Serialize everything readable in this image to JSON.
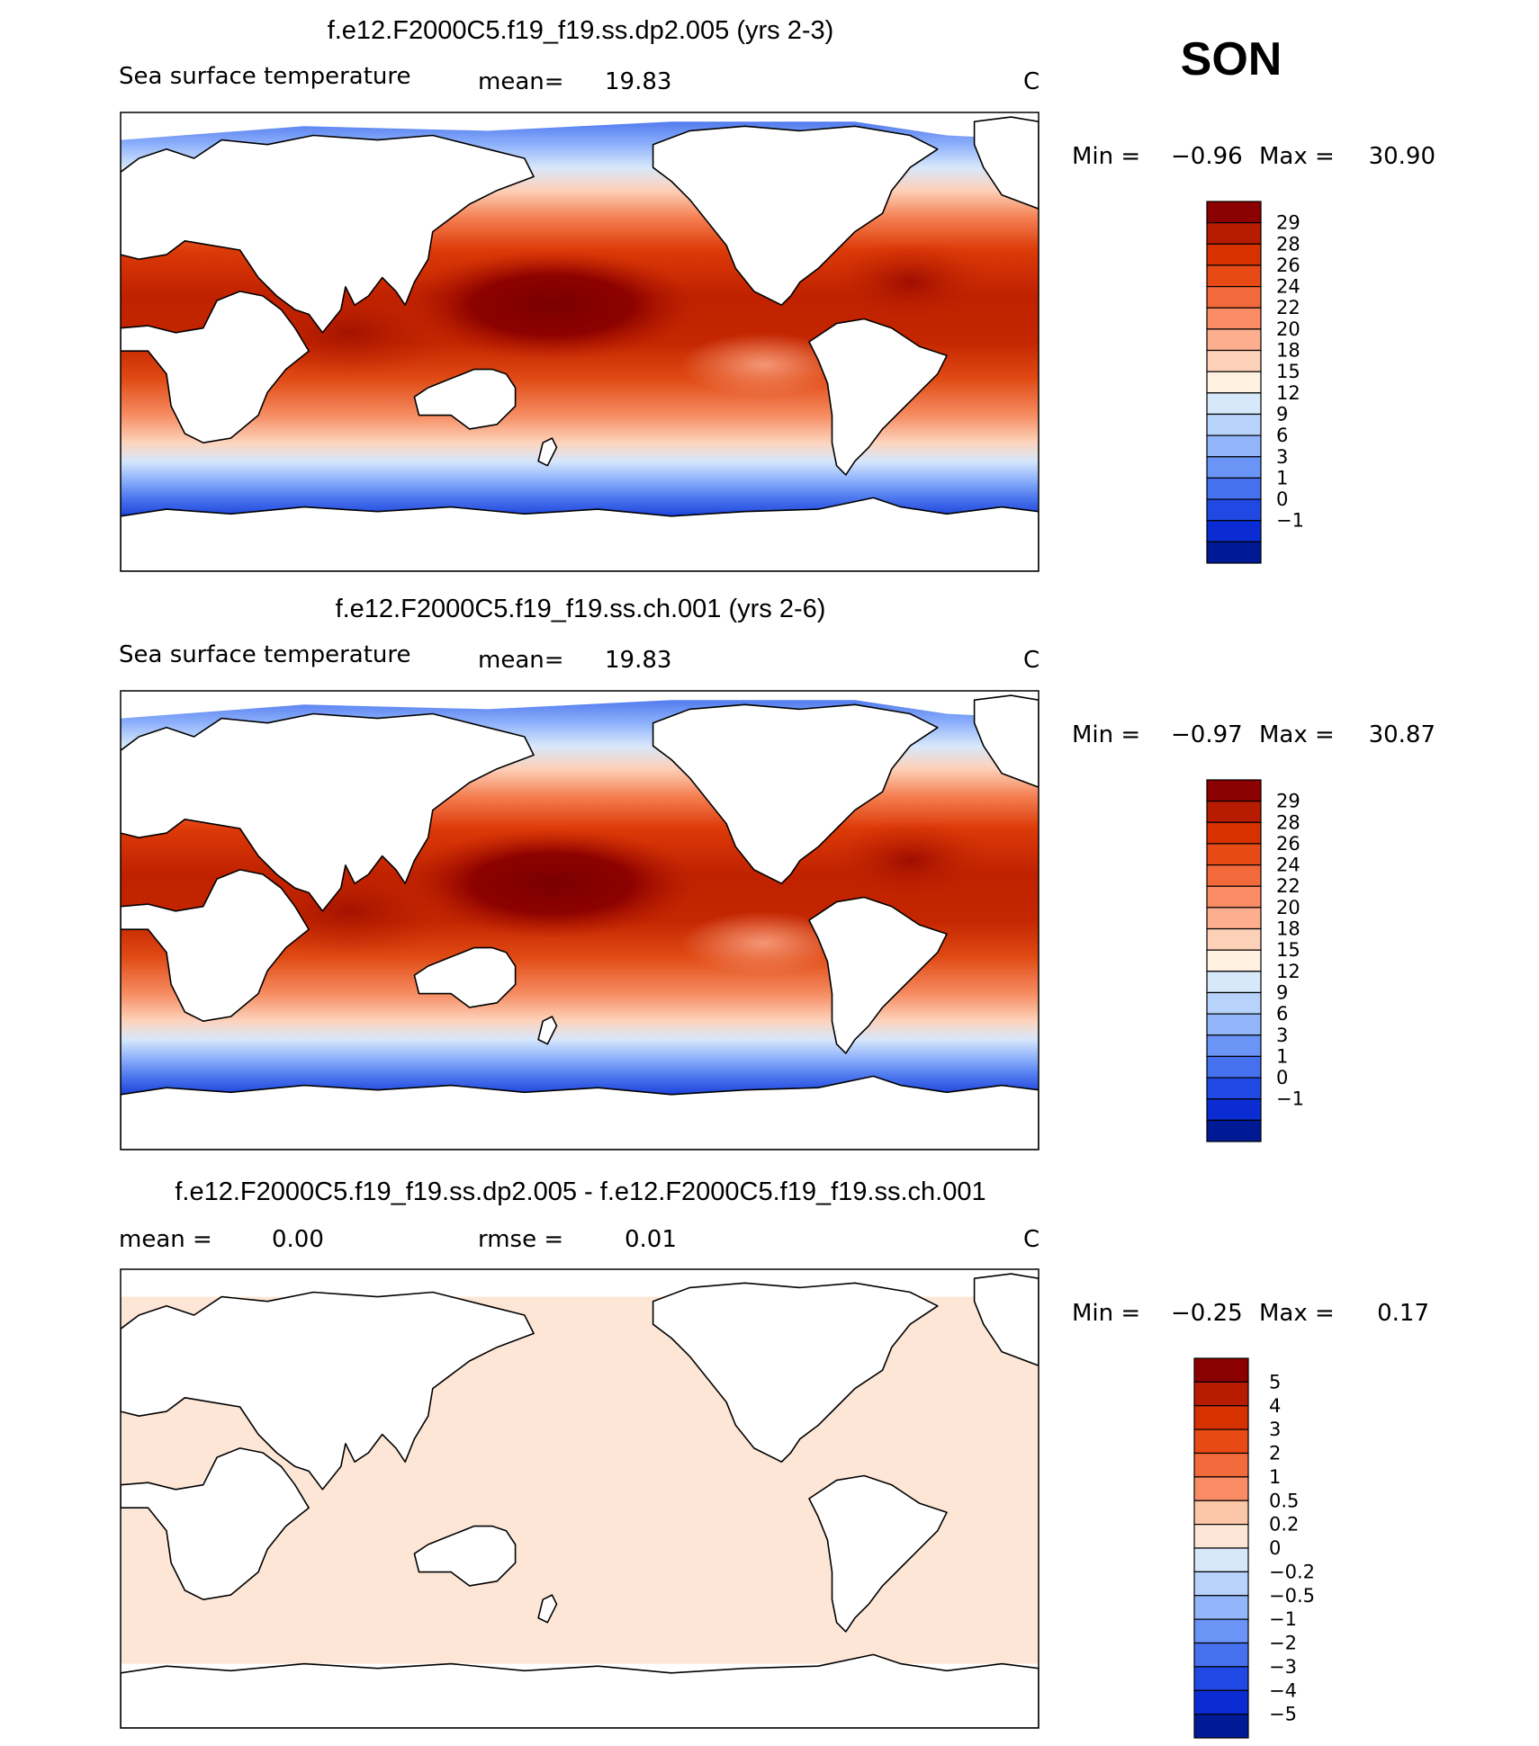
{
  "season": "SON",
  "panels": [
    {
      "id": "case1",
      "title": "f.e12.F2000C5.f19_f19.ss.dp2.005 (yrs 2-3)",
      "left_label": "Sea surface temperature",
      "stat_label": "mean=",
      "stat_value": "19.83",
      "units": "C",
      "min_label": "Min =",
      "min_value": "−0.96",
      "max_label": "Max =",
      "max_value": "30.90",
      "field_style": "sst",
      "colorbar": {
        "labels": [
          "29",
          "28",
          "26",
          "24",
          "22",
          "20",
          "18",
          "15",
          "12",
          "9",
          "6",
          "3",
          "1",
          "0",
          "−1"
        ],
        "colors": [
          "#8b0000",
          "#b81c00",
          "#d83100",
          "#e84a15",
          "#f26a3c",
          "#f98c64",
          "#fcae8e",
          "#fdd0b8",
          "#fff0e0",
          "#d6e8fa",
          "#b7d2fb",
          "#93b6fb",
          "#6b94f7",
          "#4570ee",
          "#2049e3",
          "#0a2cd2",
          "#001a96"
        ]
      }
    },
    {
      "id": "case2",
      "title": "f.e12.F2000C5.f19_f19.ss.ch.001 (yrs 2-6)",
      "left_label": "Sea surface temperature",
      "stat_label": "mean=",
      "stat_value": "19.83",
      "units": "C",
      "min_label": "Min =",
      "min_value": "−0.97",
      "max_label": "Max =",
      "max_value": "30.87",
      "field_style": "sst",
      "colorbar": {
        "labels": [
          "29",
          "28",
          "26",
          "24",
          "22",
          "20",
          "18",
          "15",
          "12",
          "9",
          "6",
          "3",
          "1",
          "0",
          "−1"
        ],
        "colors": [
          "#8b0000",
          "#b81c00",
          "#d83100",
          "#e84a15",
          "#f26a3c",
          "#f98c64",
          "#fcae8e",
          "#fdd0b8",
          "#fff0e0",
          "#d6e8fa",
          "#b7d2fb",
          "#93b6fb",
          "#6b94f7",
          "#4570ee",
          "#2049e3",
          "#0a2cd2",
          "#001a96"
        ]
      }
    },
    {
      "id": "diff",
      "title": "f.e12.F2000C5.f19_f19.ss.dp2.005 - f.e12.F2000C5.f19_f19.ss.ch.001",
      "left_label": "mean =",
      "left_value": "0.00",
      "stat_label": "rmse =",
      "stat_value": "0.01",
      "units": "C",
      "min_label": "Min =",
      "min_value": "−0.25",
      "max_label": "Max =",
      "max_value": "0.17",
      "field_style": "diff",
      "colorbar": {
        "labels": [
          "5",
          "4",
          "3",
          "2",
          "1",
          "0.5",
          "0.2",
          "0",
          "−0.2",
          "−0.5",
          "−1",
          "−2",
          "−3",
          "−4",
          "−5"
        ],
        "colors": [
          "#8b0000",
          "#b81c00",
          "#d83100",
          "#e84a15",
          "#f26a3c",
          "#f98c64",
          "#fcc6a8",
          "#fde6d6",
          "#d8e8fb",
          "#b7d2fb",
          "#93b6fb",
          "#6b94f7",
          "#4570ee",
          "#2049e3",
          "#0a2cd2",
          "#001a96"
        ]
      }
    }
  ]
}
